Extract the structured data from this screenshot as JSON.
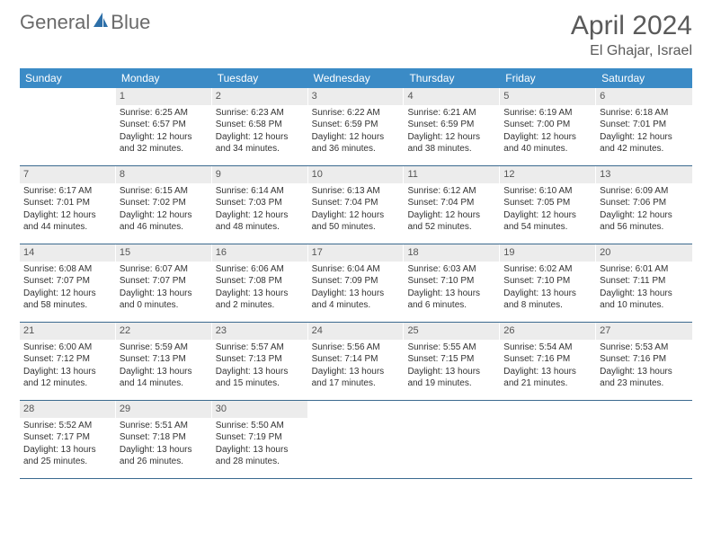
{
  "brand": {
    "part1": "General",
    "part2": "Blue"
  },
  "colors": {
    "header_bar": "#3b8bc6",
    "row_divider": "#3b6a8f",
    "daynum_bg": "#ececec",
    "text": "#333333",
    "title_text": "#5a5a5a",
    "logo_text": "#6a6a6a",
    "sail": "#2d6fa8"
  },
  "title": "April 2024",
  "location": "El Ghajar, Israel",
  "weekdays": [
    "Sunday",
    "Monday",
    "Tuesday",
    "Wednesday",
    "Thursday",
    "Friday",
    "Saturday"
  ],
  "weeks": [
    [
      {
        "n": "",
        "sr": "",
        "ss": "",
        "d1": "",
        "d2": ""
      },
      {
        "n": "1",
        "sr": "Sunrise: 6:25 AM",
        "ss": "Sunset: 6:57 PM",
        "d1": "Daylight: 12 hours",
        "d2": "and 32 minutes."
      },
      {
        "n": "2",
        "sr": "Sunrise: 6:23 AM",
        "ss": "Sunset: 6:58 PM",
        "d1": "Daylight: 12 hours",
        "d2": "and 34 minutes."
      },
      {
        "n": "3",
        "sr": "Sunrise: 6:22 AM",
        "ss": "Sunset: 6:59 PM",
        "d1": "Daylight: 12 hours",
        "d2": "and 36 minutes."
      },
      {
        "n": "4",
        "sr": "Sunrise: 6:21 AM",
        "ss": "Sunset: 6:59 PM",
        "d1": "Daylight: 12 hours",
        "d2": "and 38 minutes."
      },
      {
        "n": "5",
        "sr": "Sunrise: 6:19 AM",
        "ss": "Sunset: 7:00 PM",
        "d1": "Daylight: 12 hours",
        "d2": "and 40 minutes."
      },
      {
        "n": "6",
        "sr": "Sunrise: 6:18 AM",
        "ss": "Sunset: 7:01 PM",
        "d1": "Daylight: 12 hours",
        "d2": "and 42 minutes."
      }
    ],
    [
      {
        "n": "7",
        "sr": "Sunrise: 6:17 AM",
        "ss": "Sunset: 7:01 PM",
        "d1": "Daylight: 12 hours",
        "d2": "and 44 minutes."
      },
      {
        "n": "8",
        "sr": "Sunrise: 6:15 AM",
        "ss": "Sunset: 7:02 PM",
        "d1": "Daylight: 12 hours",
        "d2": "and 46 minutes."
      },
      {
        "n": "9",
        "sr": "Sunrise: 6:14 AM",
        "ss": "Sunset: 7:03 PM",
        "d1": "Daylight: 12 hours",
        "d2": "and 48 minutes."
      },
      {
        "n": "10",
        "sr": "Sunrise: 6:13 AM",
        "ss": "Sunset: 7:04 PM",
        "d1": "Daylight: 12 hours",
        "d2": "and 50 minutes."
      },
      {
        "n": "11",
        "sr": "Sunrise: 6:12 AM",
        "ss": "Sunset: 7:04 PM",
        "d1": "Daylight: 12 hours",
        "d2": "and 52 minutes."
      },
      {
        "n": "12",
        "sr": "Sunrise: 6:10 AM",
        "ss": "Sunset: 7:05 PM",
        "d1": "Daylight: 12 hours",
        "d2": "and 54 minutes."
      },
      {
        "n": "13",
        "sr": "Sunrise: 6:09 AM",
        "ss": "Sunset: 7:06 PM",
        "d1": "Daylight: 12 hours",
        "d2": "and 56 minutes."
      }
    ],
    [
      {
        "n": "14",
        "sr": "Sunrise: 6:08 AM",
        "ss": "Sunset: 7:07 PM",
        "d1": "Daylight: 12 hours",
        "d2": "and 58 minutes."
      },
      {
        "n": "15",
        "sr": "Sunrise: 6:07 AM",
        "ss": "Sunset: 7:07 PM",
        "d1": "Daylight: 13 hours",
        "d2": "and 0 minutes."
      },
      {
        "n": "16",
        "sr": "Sunrise: 6:06 AM",
        "ss": "Sunset: 7:08 PM",
        "d1": "Daylight: 13 hours",
        "d2": "and 2 minutes."
      },
      {
        "n": "17",
        "sr": "Sunrise: 6:04 AM",
        "ss": "Sunset: 7:09 PM",
        "d1": "Daylight: 13 hours",
        "d2": "and 4 minutes."
      },
      {
        "n": "18",
        "sr": "Sunrise: 6:03 AM",
        "ss": "Sunset: 7:10 PM",
        "d1": "Daylight: 13 hours",
        "d2": "and 6 minutes."
      },
      {
        "n": "19",
        "sr": "Sunrise: 6:02 AM",
        "ss": "Sunset: 7:10 PM",
        "d1": "Daylight: 13 hours",
        "d2": "and 8 minutes."
      },
      {
        "n": "20",
        "sr": "Sunrise: 6:01 AM",
        "ss": "Sunset: 7:11 PM",
        "d1": "Daylight: 13 hours",
        "d2": "and 10 minutes."
      }
    ],
    [
      {
        "n": "21",
        "sr": "Sunrise: 6:00 AM",
        "ss": "Sunset: 7:12 PM",
        "d1": "Daylight: 13 hours",
        "d2": "and 12 minutes."
      },
      {
        "n": "22",
        "sr": "Sunrise: 5:59 AM",
        "ss": "Sunset: 7:13 PM",
        "d1": "Daylight: 13 hours",
        "d2": "and 14 minutes."
      },
      {
        "n": "23",
        "sr": "Sunrise: 5:57 AM",
        "ss": "Sunset: 7:13 PM",
        "d1": "Daylight: 13 hours",
        "d2": "and 15 minutes."
      },
      {
        "n": "24",
        "sr": "Sunrise: 5:56 AM",
        "ss": "Sunset: 7:14 PM",
        "d1": "Daylight: 13 hours",
        "d2": "and 17 minutes."
      },
      {
        "n": "25",
        "sr": "Sunrise: 5:55 AM",
        "ss": "Sunset: 7:15 PM",
        "d1": "Daylight: 13 hours",
        "d2": "and 19 minutes."
      },
      {
        "n": "26",
        "sr": "Sunrise: 5:54 AM",
        "ss": "Sunset: 7:16 PM",
        "d1": "Daylight: 13 hours",
        "d2": "and 21 minutes."
      },
      {
        "n": "27",
        "sr": "Sunrise: 5:53 AM",
        "ss": "Sunset: 7:16 PM",
        "d1": "Daylight: 13 hours",
        "d2": "and 23 minutes."
      }
    ],
    [
      {
        "n": "28",
        "sr": "Sunrise: 5:52 AM",
        "ss": "Sunset: 7:17 PM",
        "d1": "Daylight: 13 hours",
        "d2": "and 25 minutes."
      },
      {
        "n": "29",
        "sr": "Sunrise: 5:51 AM",
        "ss": "Sunset: 7:18 PM",
        "d1": "Daylight: 13 hours",
        "d2": "and 26 minutes."
      },
      {
        "n": "30",
        "sr": "Sunrise: 5:50 AM",
        "ss": "Sunset: 7:19 PM",
        "d1": "Daylight: 13 hours",
        "d2": "and 28 minutes."
      },
      {
        "n": "",
        "sr": "",
        "ss": "",
        "d1": "",
        "d2": ""
      },
      {
        "n": "",
        "sr": "",
        "ss": "",
        "d1": "",
        "d2": ""
      },
      {
        "n": "",
        "sr": "",
        "ss": "",
        "d1": "",
        "d2": ""
      },
      {
        "n": "",
        "sr": "",
        "ss": "",
        "d1": "",
        "d2": ""
      }
    ]
  ]
}
